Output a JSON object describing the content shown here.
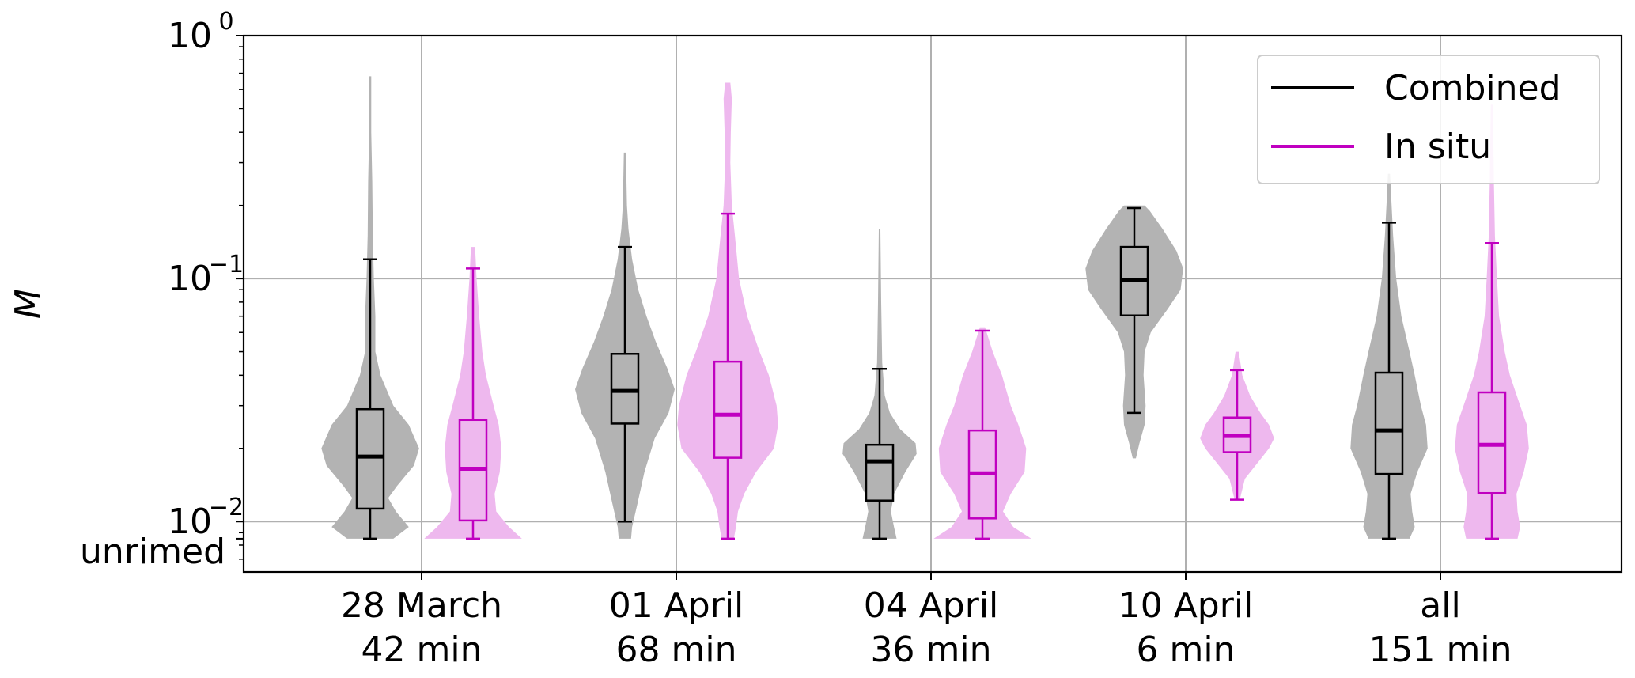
{
  "chart_data": {
    "type": "violin",
    "ylabel": "M",
    "yscale": "log",
    "ylim": [
      0.0062,
      1.0
    ],
    "y_ticks": [
      {
        "value": 0.01,
        "base": "10",
        "exp": "−2"
      },
      {
        "value": 0.1,
        "base": "10",
        "exp": "−1"
      },
      {
        "value": 1.0,
        "base": "10",
        "exp": "0"
      }
    ],
    "y_extra_tick": {
      "value": 0.0085,
      "label": "unrimed"
    },
    "grid": true,
    "legend_position": "top-right",
    "colors": {
      "Combined": {
        "line": "#000000",
        "fill": "#b3b3b3"
      },
      "In situ": {
        "line": "#c000c0",
        "fill": "#eeb8ee"
      }
    },
    "categories": [
      {
        "line1": "28 March",
        "line2": "42 min"
      },
      {
        "line1": "01 April",
        "line2": "68 min"
      },
      {
        "line1": "04 April",
        "line2": "36 min"
      },
      {
        "line1": "10 April",
        "line2": "6 min"
      },
      {
        "line1": "all",
        "line2": "151 min"
      }
    ],
    "series": [
      {
        "name": "Combined",
        "box": [
          {
            "whisker_low": 0.0085,
            "q1": 0.0113,
            "median": 0.0185,
            "q3": 0.029,
            "whisker_high": 0.12
          },
          {
            "whisker_low": 0.01,
            "q1": 0.0253,
            "median": 0.0345,
            "q3": 0.049,
            "whisker_high": 0.135
          },
          {
            "whisker_low": 0.0085,
            "q1": 0.0122,
            "median": 0.0177,
            "q3": 0.0207,
            "whisker_high": 0.0425
          },
          {
            "whisker_low": 0.028,
            "q1": 0.0705,
            "median": 0.099,
            "q3": 0.135,
            "whisker_high": 0.195
          },
          {
            "whisker_low": 0.0085,
            "q1": 0.0157,
            "median": 0.0237,
            "q3": 0.041,
            "whisker_high": 0.17
          }
        ],
        "violin": [
          {
            "min": 0.0085,
            "max": 0.68,
            "profile": [
              [
                0.0085,
                0.45
              ],
              [
                0.0095,
                0.75
              ],
              [
                0.011,
                0.5
              ],
              [
                0.0125,
                0.35
              ],
              [
                0.014,
                0.52
              ],
              [
                0.017,
                0.85
              ],
              [
                0.02,
                0.95
              ],
              [
                0.025,
                0.75
              ],
              [
                0.03,
                0.45
              ],
              [
                0.04,
                0.2
              ],
              [
                0.05,
                0.1
              ],
              [
                0.07,
                0.1
              ],
              [
                0.1,
                0.07
              ],
              [
                0.15,
                0.05
              ],
              [
                0.25,
                0.04
              ],
              [
                0.4,
                0.02
              ],
              [
                0.68,
                0.02
              ]
            ]
          },
          {
            "min": 0.0085,
            "max": 0.33,
            "profile": [
              [
                0.0085,
                0.12
              ],
              [
                0.0095,
                0.14
              ],
              [
                0.012,
                0.25
              ],
              [
                0.016,
                0.38
              ],
              [
                0.022,
                0.58
              ],
              [
                0.028,
                0.85
              ],
              [
                0.035,
                0.97
              ],
              [
                0.043,
                0.82
              ],
              [
                0.055,
                0.6
              ],
              [
                0.07,
                0.42
              ],
              [
                0.09,
                0.26
              ],
              [
                0.12,
                0.14
              ],
              [
                0.16,
                0.07
              ],
              [
                0.2,
                0.04
              ],
              [
                0.33,
                0.02
              ]
            ]
          },
          {
            "min": 0.0085,
            "max": 0.16,
            "profile": [
              [
                0.0085,
                0.33
              ],
              [
                0.0095,
                0.28
              ],
              [
                0.011,
                0.22
              ],
              [
                0.013,
                0.28
              ],
              [
                0.016,
                0.5
              ],
              [
                0.019,
                0.72
              ],
              [
                0.021,
                0.7
              ],
              [
                0.024,
                0.4
              ],
              [
                0.028,
                0.2
              ],
              [
                0.033,
                0.1
              ],
              [
                0.045,
                0.05
              ],
              [
                0.08,
                0.03
              ],
              [
                0.16,
                0.015
              ]
            ]
          },
          {
            "min": 0.0182,
            "max": 0.2,
            "profile": [
              [
                0.0182,
                0.03
              ],
              [
                0.021,
                0.1
              ],
              [
                0.025,
                0.2
              ],
              [
                0.03,
                0.22
              ],
              [
                0.04,
                0.18
              ],
              [
                0.05,
                0.2
              ],
              [
                0.06,
                0.32
              ],
              [
                0.075,
                0.65
              ],
              [
                0.09,
                0.9
              ],
              [
                0.11,
                0.95
              ],
              [
                0.13,
                0.82
              ],
              [
                0.16,
                0.55
              ],
              [
                0.19,
                0.3
              ],
              [
                0.2,
                0.2
              ]
            ]
          },
          {
            "min": 0.0085,
            "max": 0.27,
            "profile": [
              [
                0.0085,
                0.4
              ],
              [
                0.0095,
                0.5
              ],
              [
                0.011,
                0.45
              ],
              [
                0.013,
                0.42
              ],
              [
                0.016,
                0.55
              ],
              [
                0.02,
                0.75
              ],
              [
                0.025,
                0.72
              ],
              [
                0.03,
                0.62
              ],
              [
                0.04,
                0.5
              ],
              [
                0.05,
                0.4
              ],
              [
                0.07,
                0.24
              ],
              [
                0.1,
                0.14
              ],
              [
                0.15,
                0.08
              ],
              [
                0.2,
                0.05
              ],
              [
                0.27,
                0.02
              ]
            ]
          }
        ]
      },
      {
        "name": "In situ",
        "box": [
          {
            "whisker_low": 0.0085,
            "q1": 0.0101,
            "median": 0.0165,
            "q3": 0.0262,
            "whisker_high": 0.11
          },
          {
            "whisker_low": 0.0085,
            "q1": 0.0183,
            "median": 0.0275,
            "q3": 0.0455,
            "whisker_high": 0.185
          },
          {
            "whisker_low": 0.0085,
            "q1": 0.0103,
            "median": 0.0158,
            "q3": 0.0237,
            "whisker_high": 0.061
          },
          {
            "whisker_low": 0.0123,
            "q1": 0.0193,
            "median": 0.0225,
            "q3": 0.0268,
            "whisker_high": 0.042
          },
          {
            "whisker_low": 0.0085,
            "q1": 0.0131,
            "median": 0.0207,
            "q3": 0.034,
            "whisker_high": 0.14
          }
        ],
        "violin": [
          {
            "min": 0.0085,
            "max": 0.135,
            "profile": [
              [
                0.0085,
                0.95
              ],
              [
                0.0095,
                0.7
              ],
              [
                0.011,
                0.45
              ],
              [
                0.013,
                0.42
              ],
              [
                0.016,
                0.52
              ],
              [
                0.02,
                0.55
              ],
              [
                0.025,
                0.5
              ],
              [
                0.03,
                0.4
              ],
              [
                0.04,
                0.25
              ],
              [
                0.05,
                0.18
              ],
              [
                0.07,
                0.12
              ],
              [
                0.1,
                0.07
              ],
              [
                0.135,
                0.04
              ]
            ]
          },
          {
            "min": 0.0085,
            "max": 0.64,
            "profile": [
              [
                0.0085,
                0.12
              ],
              [
                0.0095,
                0.16
              ],
              [
                0.011,
                0.2
              ],
              [
                0.013,
                0.32
              ],
              [
                0.016,
                0.55
              ],
              [
                0.02,
                0.9
              ],
              [
                0.025,
                0.98
              ],
              [
                0.03,
                0.95
              ],
              [
                0.04,
                0.8
              ],
              [
                0.05,
                0.62
              ],
              [
                0.07,
                0.38
              ],
              [
                0.1,
                0.22
              ],
              [
                0.15,
                0.14
              ],
              [
                0.2,
                0.08
              ],
              [
                0.3,
                0.05
              ],
              [
                0.4,
                0.06
              ],
              [
                0.55,
                0.08
              ],
              [
                0.64,
                0.05
              ]
            ]
          },
          {
            "min": 0.0085,
            "max": 0.063,
            "profile": [
              [
                0.0085,
                0.95
              ],
              [
                0.0095,
                0.6
              ],
              [
                0.011,
                0.4
              ],
              [
                0.013,
                0.55
              ],
              [
                0.016,
                0.82
              ],
              [
                0.02,
                0.85
              ],
              [
                0.025,
                0.7
              ],
              [
                0.03,
                0.55
              ],
              [
                0.04,
                0.38
              ],
              [
                0.05,
                0.2
              ],
              [
                0.063,
                0.05
              ]
            ]
          },
          {
            "min": 0.0123,
            "max": 0.05,
            "profile": [
              [
                0.0123,
                0.05
              ],
              [
                0.015,
                0.15
              ],
              [
                0.018,
                0.45
              ],
              [
                0.02,
                0.62
              ],
              [
                0.022,
                0.72
              ],
              [
                0.025,
                0.62
              ],
              [
                0.028,
                0.45
              ],
              [
                0.033,
                0.25
              ],
              [
                0.04,
                0.1
              ],
              [
                0.05,
                0.03
              ]
            ]
          },
          {
            "min": 0.0085,
            "max": 0.52,
            "profile": [
              [
                0.0085,
                0.5
              ],
              [
                0.0095,
                0.55
              ],
              [
                0.011,
                0.5
              ],
              [
                0.013,
                0.48
              ],
              [
                0.016,
                0.62
              ],
              [
                0.02,
                0.72
              ],
              [
                0.025,
                0.68
              ],
              [
                0.03,
                0.55
              ],
              [
                0.04,
                0.35
              ],
              [
                0.05,
                0.25
              ],
              [
                0.07,
                0.14
              ],
              [
                0.1,
                0.1
              ],
              [
                0.15,
                0.06
              ],
              [
                0.25,
                0.04
              ],
              [
                0.52,
                0.02
              ]
            ]
          }
        ]
      }
    ]
  }
}
